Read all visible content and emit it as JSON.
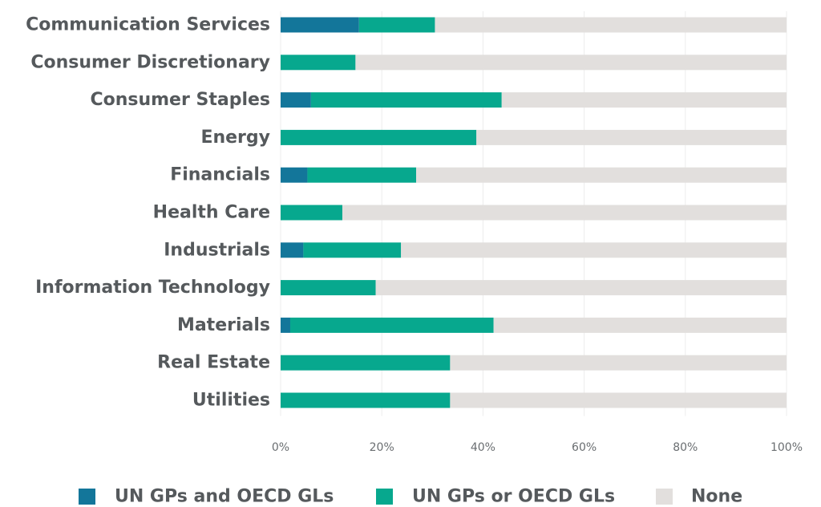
{
  "chart_data": {
    "type": "bar",
    "orientation": "horizontal",
    "stacked": true,
    "categories": [
      "Communication Services",
      "Consumer Discretionary",
      "Consumer Staples",
      "Energy",
      "Financials",
      "Health Care",
      "Industrials",
      "Information Technology",
      "Materials",
      "Real Estate",
      "Utilities"
    ],
    "series": [
      {
        "name": "UN GPs and OECD GLs",
        "color": "#13769a",
        "values": [
          15.5,
          0,
          6,
          0,
          5.3,
          0,
          4.5,
          0,
          1.9,
          0,
          0
        ]
      },
      {
        "name": "UN GPs or OECD GLs",
        "color": "#07a88e",
        "values": [
          15,
          14.8,
          37.7,
          38.7,
          21.5,
          12.2,
          19.3,
          18.8,
          40.2,
          33.5,
          33.5
        ]
      },
      {
        "name": "None",
        "color": "#e2dfdd",
        "values": [
          69.5,
          85.2,
          56.3,
          61.3,
          73.2,
          87.8,
          76.2,
          81.2,
          57.9,
          66.5,
          66.5
        ]
      }
    ],
    "xlim": [
      0,
      100
    ],
    "xticks": [
      0,
      20,
      40,
      60,
      80,
      100
    ],
    "xtick_labels": [
      "0%",
      "20%",
      "40%",
      "60%",
      "80%",
      "100%"
    ],
    "grid": true,
    "legend_position": "bottom"
  }
}
